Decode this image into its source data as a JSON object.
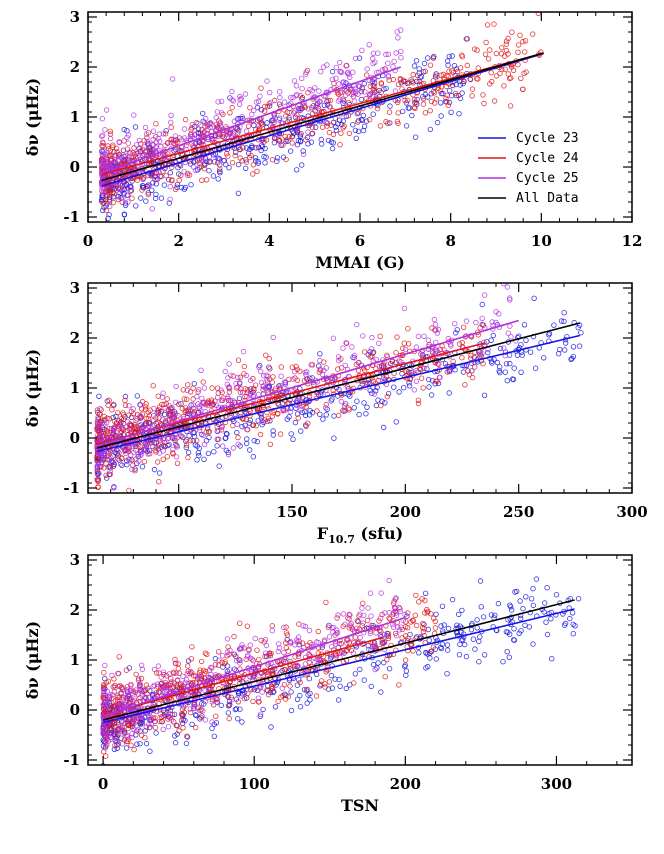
{
  "colors": {
    "cycle23": "#1515e0",
    "cycle24": "#e01515",
    "cycle25": "#b030e0",
    "all": "#000000"
  },
  "legend": {
    "placement": "lower-right of top panel",
    "entries": [
      {
        "label": "Cycle 23",
        "color": "#1515e0"
      },
      {
        "label": "Cycle 24",
        "color": "#e01515"
      },
      {
        "label": "Cycle 25",
        "color": "#b030e0"
      },
      {
        "label": "All Data",
        "color": "#000000"
      }
    ]
  },
  "chart_data": [
    {
      "type": "scatter",
      "ylabel": "δν (μHz)",
      "xlabel": "MMAI (G)",
      "xlim": [
        0,
        12
      ],
      "ylim": [
        -1.1,
        3.1
      ],
      "xticks": [
        0,
        2,
        4,
        6,
        8,
        10,
        12
      ],
      "yticks": [
        -1,
        0,
        1,
        2,
        3
      ],
      "point_clouds": [
        {
          "name": "Cycle 23",
          "color": "#1515e0",
          "x_range": [
            0.3,
            8.5
          ],
          "fit": [
            [
              0.3,
              -0.38
            ],
            [
              10.05,
              2.27
            ]
          ],
          "spread": 0.3
        },
        {
          "name": "Cycle 24",
          "color": "#e01515",
          "x_range": [
            0.3,
            10.0
          ],
          "fit": [
            [
              0.3,
              -0.15
            ],
            [
              10.05,
              2.28
            ]
          ],
          "spread": 0.3
        },
        {
          "name": "Cycle 25",
          "color": "#b030e0",
          "x_range": [
            0.3,
            7.0
          ],
          "fit": [
            [
              0.3,
              -0.12
            ],
            [
              6.9,
              2.0
            ]
          ],
          "spread": 0.3
        }
      ],
      "fit_lines": [
        {
          "name": "Cycle 23",
          "color": "#1515e0",
          "points": [
            [
              0.3,
              -0.38
            ],
            [
              10.05,
              2.27
            ]
          ]
        },
        {
          "name": "Cycle 24",
          "color": "#e01515",
          "points": [
            [
              0.3,
              -0.15
            ],
            [
              10.05,
              2.28
            ]
          ]
        },
        {
          "name": "Cycle 25",
          "color": "#b030e0",
          "points": [
            [
              0.3,
              -0.12
            ],
            [
              6.9,
              2.0
            ]
          ]
        },
        {
          "name": "All Data",
          "color": "#000000",
          "points": [
            [
              0.3,
              -0.27
            ],
            [
              10.05,
              2.28
            ]
          ]
        }
      ],
      "grid": false
    },
    {
      "type": "scatter",
      "ylabel": "δν (μHz)",
      "xlabel": "F10.7 (sfu)",
      "xlim": [
        60,
        300
      ],
      "ylim": [
        -1.1,
        3.1
      ],
      "xticks": [
        100,
        150,
        200,
        250,
        300
      ],
      "yticks": [
        -1,
        0,
        1,
        2,
        3
      ],
      "point_clouds": [
        {
          "name": "Cycle 23",
          "color": "#1515e0",
          "x_range": [
            64,
            278
          ],
          "fit": [
            [
              64,
              -0.27
            ],
            [
              277,
              2.05
            ]
          ],
          "spread": 0.3
        },
        {
          "name": "Cycle 24",
          "color": "#e01515",
          "x_range": [
            64,
            235
          ],
          "fit": [
            [
              64,
              -0.12
            ],
            [
              235,
              1.9
            ]
          ],
          "spread": 0.3
        },
        {
          "name": "Cycle 25",
          "color": "#b030e0",
          "x_range": [
            64,
            250
          ],
          "fit": [
            [
              64,
              -0.15
            ],
            [
              250,
              2.35
            ]
          ],
          "spread": 0.3
        }
      ],
      "fit_lines": [
        {
          "name": "Cycle 23",
          "color": "#1515e0",
          "points": [
            [
              64,
              -0.27
            ],
            [
              277,
              2.05
            ]
          ]
        },
        {
          "name": "Cycle 24",
          "color": "#e01515",
          "points": [
            [
              64,
              -0.12
            ],
            [
              235,
              1.9
            ]
          ]
        },
        {
          "name": "Cycle 25",
          "color": "#b030e0",
          "points": [
            [
              64,
              -0.15
            ],
            [
              250,
              2.35
            ]
          ]
        },
        {
          "name": "All Data",
          "color": "#000000",
          "points": [
            [
              64,
              -0.2
            ],
            [
              277,
              2.3
            ]
          ]
        }
      ],
      "grid": false
    },
    {
      "type": "scatter",
      "ylabel": "δν (μHz)",
      "xlabel": "TSN",
      "xlim": [
        -10,
        350
      ],
      "ylim": [
        -1.1,
        3.1
      ],
      "xticks": [
        0,
        100,
        200,
        300
      ],
      "yticks": [
        -1,
        0,
        1,
        2,
        3
      ],
      "point_clouds": [
        {
          "name": "Cycle 23",
          "color": "#1515e0",
          "x_range": [
            0,
            315
          ],
          "fit": [
            [
              0,
              -0.25
            ],
            [
              312,
              2.02
            ]
          ],
          "spread": 0.3
        },
        {
          "name": "Cycle 24",
          "color": "#e01515",
          "x_range": [
            0,
            220
          ],
          "fit": [
            [
              0,
              -0.1
            ],
            [
              185,
              1.45
            ]
          ],
          "spread": 0.3
        },
        {
          "name": "Cycle 25",
          "color": "#b030e0",
          "x_range": [
            0,
            200
          ],
          "fit": [
            [
              0,
              -0.12
            ],
            [
              200,
              1.85
            ]
          ],
          "spread": 0.3
        }
      ],
      "fit_lines": [
        {
          "name": "Cycle 23",
          "color": "#1515e0",
          "points": [
            [
              0,
              -0.25
            ],
            [
              312,
              2.02
            ]
          ]
        },
        {
          "name": "Cycle 24",
          "color": "#e01515",
          "points": [
            [
              0,
              -0.1
            ],
            [
              185,
              1.45
            ]
          ]
        },
        {
          "name": "Cycle 25",
          "color": "#b030e0",
          "points": [
            [
              0,
              -0.12
            ],
            [
              200,
              1.85
            ]
          ]
        },
        {
          "name": "All Data",
          "color": "#000000",
          "points": [
            [
              0,
              -0.2
            ],
            [
              312,
              2.2
            ]
          ]
        }
      ],
      "grid": false
    }
  ]
}
